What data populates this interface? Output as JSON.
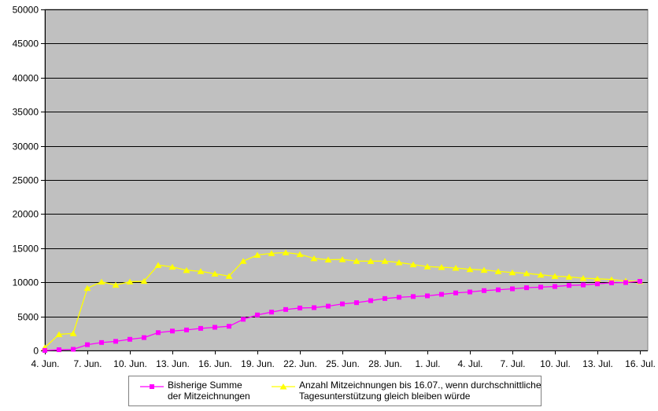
{
  "chart_data": {
    "type": "line",
    "title": "",
    "categories": [
      "4. Jun.",
      "5. Jun.",
      "6. Jun.",
      "7. Jun.",
      "8. Jun.",
      "9. Jun.",
      "10. Jun.",
      "11. Jun.",
      "12. Jun.",
      "13. Jun.",
      "14. Jun.",
      "15. Jun.",
      "16. Jun.",
      "17. Jun.",
      "18. Jun.",
      "19. Jun.",
      "20. Jun.",
      "21. Jun.",
      "22. Jun.",
      "23. Jun.",
      "24. Jun.",
      "25. Jun.",
      "26. Jun.",
      "27. Jun.",
      "28. Jun.",
      "29. Jun.",
      "30. Jun.",
      "1. Jul.",
      "2. Jul.",
      "3. Jul.",
      "4. Jul.",
      "5. Jul.",
      "6. Jul.",
      "7. Jul.",
      "8. Jul.",
      "9. Jul.",
      "10. Jul.",
      "11. Jul.",
      "12. Jul.",
      "13. Jul.",
      "14. Jul.",
      "15. Jul.",
      "16. Jul."
    ],
    "x_tick_labels": [
      "4. Jun.",
      "7. Jun.",
      "10. Jun.",
      "13. Jun.",
      "16. Jun.",
      "19. Jun.",
      "22. Jun.",
      "25. Jun.",
      "28. Jun.",
      "1. Jul.",
      "4. Jul.",
      "7. Jul.",
      "10. Jul.",
      "13. Jul.",
      "16. Jul."
    ],
    "x_tick_every": 3,
    "y_tick_labels": [
      "0",
      "5000",
      "10000",
      "15000",
      "20000",
      "25000",
      "30000",
      "35000",
      "40000",
      "45000",
      "50000"
    ],
    "y_tick_step": 5000,
    "ylim": [
      0,
      50000
    ],
    "grid": true,
    "legend_position": "bottom",
    "plot_bg": "#c0c0c0",
    "colors": {
      "grid": "#000000",
      "border": "#808080",
      "axis": "#000000",
      "text": "#000000"
    },
    "series": [
      {
        "id": "bisherige-summe",
        "name": "Bisherige Summe der Mitzeichnungen",
        "color": "#ff00ff",
        "marker": "square",
        "values": [
          10,
          110,
          175,
          850,
          1170,
          1340,
          1640,
          1890,
          2620,
          2850,
          3010,
          3240,
          3400,
          3550,
          4570,
          5210,
          5630,
          6010,
          6230,
          6280,
          6500,
          6830,
          7010,
          7310,
          7620,
          7800,
          7910,
          8010,
          8230,
          8440,
          8580,
          8780,
          8900,
          9040,
          9200,
          9290,
          9380,
          9540,
          9610,
          9770,
          9920,
          9960,
          10140
        ]
      },
      {
        "id": "prognose",
        "name": "Anzahl Mitzeichnungen bis 16.07., wenn durchschnittliche Tagesunterstützung gleich bleiben würde",
        "color": "#ffff00",
        "marker": "triangle",
        "values": [
          430,
          2365,
          2510,
          9140,
          10060,
          9600,
          10075,
          10160,
          12520,
          12255,
          11765,
          11610,
          11245,
          10905,
          13100,
          14000,
          14240,
          14355,
          14100,
          13500,
          13310,
          13350,
          13105,
          13095,
          13105,
          12900,
          12600,
          12300,
          12205,
          12095,
          11900,
          11800,
          11595,
          11435,
          11305,
          11095,
          10900,
          10795,
          10595,
          10505,
          10410,
          10195,
          10140
        ]
      }
    ]
  },
  "legend": {
    "series1_line1": "Bisherige Summe",
    "series1_line2": "der Mitzeichnungen",
    "series2_line1": "Anzahl Mitzeichnungen bis 16.07., wenn durchschnittliche",
    "series2_line2": "Tagesunterstützung gleich bleiben würde"
  }
}
